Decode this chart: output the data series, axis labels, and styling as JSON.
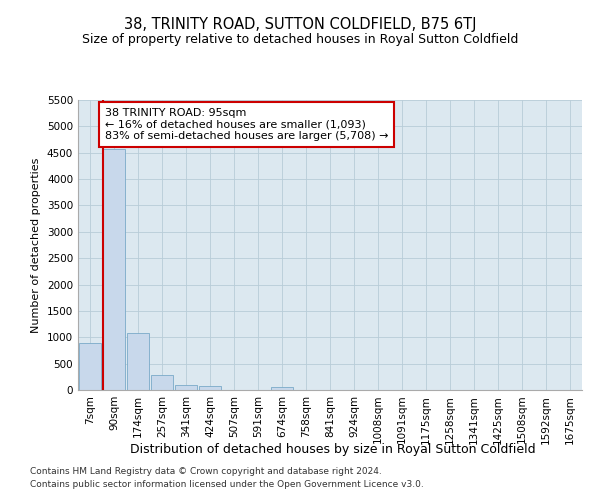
{
  "title": "38, TRINITY ROAD, SUTTON COLDFIELD, B75 6TJ",
  "subtitle": "Size of property relative to detached houses in Royal Sutton Coldfield",
  "xlabel": "Distribution of detached houses by size in Royal Sutton Coldfield",
  "ylabel": "Number of detached properties",
  "footnote1": "Contains HM Land Registry data © Crown copyright and database right 2024.",
  "footnote2": "Contains public sector information licensed under the Open Government Licence v3.0.",
  "categories": [
    "7sqm",
    "90sqm",
    "174sqm",
    "257sqm",
    "341sqm",
    "424sqm",
    "507sqm",
    "591sqm",
    "674sqm",
    "758sqm",
    "841sqm",
    "924sqm",
    "1008sqm",
    "1091sqm",
    "1175sqm",
    "1258sqm",
    "1341sqm",
    "1425sqm",
    "1508sqm",
    "1592sqm",
    "1675sqm"
  ],
  "values": [
    900,
    4575,
    1075,
    285,
    90,
    85,
    0,
    0,
    55,
    0,
    0,
    0,
    0,
    0,
    0,
    0,
    0,
    0,
    0,
    0,
    0
  ],
  "bar_color": "#c8d8eb",
  "bar_edgecolor": "#7aaac8",
  "highlight_line_color": "#cc0000",
  "annotation_text": "38 TRINITY ROAD: 95sqm\n← 16% of detached houses are smaller (1,093)\n83% of semi-detached houses are larger (5,708) →",
  "annotation_box_facecolor": "#ffffff",
  "annotation_box_edgecolor": "#cc0000",
  "ylim": [
    0,
    5500
  ],
  "yticks": [
    0,
    500,
    1000,
    1500,
    2000,
    2500,
    3000,
    3500,
    4000,
    4500,
    5000,
    5500
  ],
  "plot_bg_color": "#dce8f0",
  "background_color": "#ffffff",
  "grid_color": "#b8ccd8",
  "title_fontsize": 10.5,
  "subtitle_fontsize": 9,
  "ylabel_fontsize": 8,
  "xlabel_fontsize": 9,
  "tick_fontsize": 7.5,
  "annot_fontsize": 8
}
